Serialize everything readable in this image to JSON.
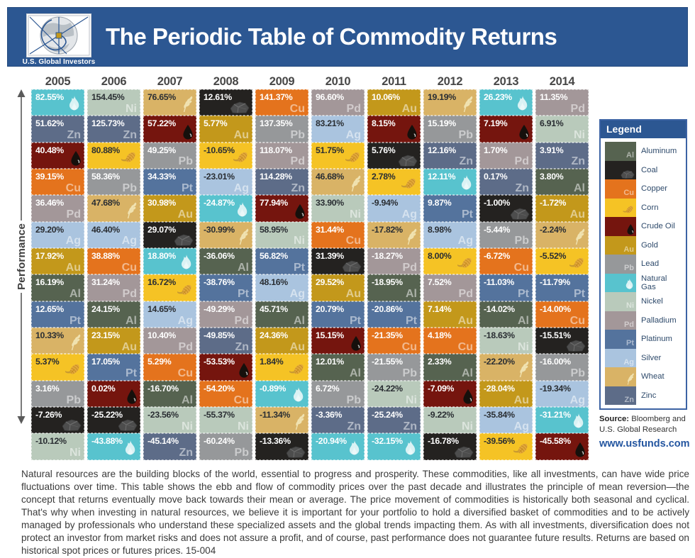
{
  "header": {
    "title": "The Periodic Table of Commodity Returns",
    "logo_caption": "U.S. Global Investors"
  },
  "performance_label": "Performance",
  "chart_data": {
    "type": "table",
    "title": "The Periodic Table of Commodity Returns",
    "years": [
      "2005",
      "2006",
      "2007",
      "2008",
      "2009",
      "2010",
      "2011",
      "2012",
      "2013",
      "2014"
    ],
    "commodities": {
      "aluminum": {
        "label": "Aluminum",
        "symbol": "Al",
        "color": "#566350",
        "text": "#FFFFFF"
      },
      "coal": {
        "label": "Coal",
        "icon": "coal",
        "color": "#242220",
        "text": "#FFFFFF"
      },
      "copper": {
        "label": "Copper",
        "symbol": "Cu",
        "color": "#E4731D",
        "text": "#FFFFFF"
      },
      "corn": {
        "label": "Corn",
        "icon": "corn",
        "color": "#F5C325",
        "text": "#2A2E33"
      },
      "crude_oil": {
        "label": "Crude Oil",
        "icon": "drop",
        "color": "#75150E",
        "text": "#FFFFFF"
      },
      "gold": {
        "label": "Gold",
        "symbol": "Au",
        "color": "#C3981B",
        "text": "#FFFFFF"
      },
      "lead": {
        "label": "Lead",
        "symbol": "Pb",
        "color": "#96989A",
        "text": "#FFFFFF"
      },
      "natural_gas": {
        "label": "Natural Gas",
        "icon": "flame",
        "color": "#58C3CE",
        "text": "#FFFFFF"
      },
      "nickel": {
        "label": "Nickel",
        "symbol": "Ni",
        "color": "#B9CABB",
        "text": "#2A2E33"
      },
      "palladium": {
        "label": "Palladium",
        "symbol": "Pd",
        "color": "#A39799",
        "text": "#FFFFFF"
      },
      "platinum": {
        "label": "Platinum",
        "symbol": "Pt",
        "color": "#54739D",
        "text": "#FFFFFF"
      },
      "silver": {
        "label": "Silver",
        "symbol": "Ag",
        "color": "#AAC4DF",
        "text": "#2A2E33"
      },
      "wheat": {
        "label": "Wheat",
        "icon": "wheat",
        "color": "#D9B366",
        "text": "#2A2E33"
      },
      "zinc": {
        "label": "Zinc",
        "symbol": "Zn",
        "color": "#5D6C88",
        "text": "#FFFFFF"
      }
    },
    "columns": {
      "2005": [
        {
          "commodity": "natural_gas",
          "value": "82.55%"
        },
        {
          "commodity": "zinc",
          "value": "51.62%"
        },
        {
          "commodity": "crude_oil",
          "value": "40.48%"
        },
        {
          "commodity": "copper",
          "value": "39.15%"
        },
        {
          "commodity": "palladium",
          "value": "36.46%"
        },
        {
          "commodity": "silver",
          "value": "29.20%"
        },
        {
          "commodity": "gold",
          "value": "17.92%"
        },
        {
          "commodity": "aluminum",
          "value": "16.19%"
        },
        {
          "commodity": "platinum",
          "value": "12.65%"
        },
        {
          "commodity": "wheat",
          "value": "10.33%"
        },
        {
          "commodity": "corn",
          "value": "5.37%"
        },
        {
          "commodity": "lead",
          "value": "3.16%"
        },
        {
          "commodity": "coal",
          "value": "-7.26%"
        },
        {
          "commodity": "nickel",
          "value": "-10.12%"
        }
      ],
      "2006": [
        {
          "commodity": "nickel",
          "value": "154.45%"
        },
        {
          "commodity": "zinc",
          "value": "125.73%"
        },
        {
          "commodity": "corn",
          "value": "80.88%"
        },
        {
          "commodity": "lead",
          "value": "58.36%"
        },
        {
          "commodity": "wheat",
          "value": "47.68%"
        },
        {
          "commodity": "silver",
          "value": "46.40%"
        },
        {
          "commodity": "copper",
          "value": "38.88%"
        },
        {
          "commodity": "palladium",
          "value": "31.24%"
        },
        {
          "commodity": "aluminum",
          "value": "24.15%"
        },
        {
          "commodity": "gold",
          "value": "23.15%"
        },
        {
          "commodity": "platinum",
          "value": "17.05%"
        },
        {
          "commodity": "crude_oil",
          "value": "0.02%"
        },
        {
          "commodity": "coal",
          "value": "-25.22%"
        },
        {
          "commodity": "natural_gas",
          "value": "-43.88%"
        }
      ],
      "2007": [
        {
          "commodity": "wheat",
          "value": "76.65%"
        },
        {
          "commodity": "crude_oil",
          "value": "57.22%"
        },
        {
          "commodity": "lead",
          "value": "49.25%"
        },
        {
          "commodity": "platinum",
          "value": "34.33%"
        },
        {
          "commodity": "gold",
          "value": "30.98%"
        },
        {
          "commodity": "coal",
          "value": "29.07%"
        },
        {
          "commodity": "natural_gas",
          "value": "18.80%"
        },
        {
          "commodity": "corn",
          "value": "16.72%"
        },
        {
          "commodity": "silver",
          "value": "14.65%"
        },
        {
          "commodity": "palladium",
          "value": "10.40%"
        },
        {
          "commodity": "copper",
          "value": "5.29%"
        },
        {
          "commodity": "aluminum",
          "value": "-16.70%"
        },
        {
          "commodity": "nickel",
          "value": "-23.56%"
        },
        {
          "commodity": "zinc",
          "value": "-45.14%"
        }
      ],
      "2008": [
        {
          "commodity": "coal",
          "value": "12.61%"
        },
        {
          "commodity": "gold",
          "value": "5.77%"
        },
        {
          "commodity": "corn",
          "value": "-10.65%"
        },
        {
          "commodity": "silver",
          "value": "-23.01%"
        },
        {
          "commodity": "natural_gas",
          "value": "-24.87%"
        },
        {
          "commodity": "wheat",
          "value": "-30.99%"
        },
        {
          "commodity": "aluminum",
          "value": "-36.06%"
        },
        {
          "commodity": "platinum",
          "value": "-38.76%"
        },
        {
          "commodity": "palladium",
          "value": "-49.29%"
        },
        {
          "commodity": "zinc",
          "value": "-49.85%"
        },
        {
          "commodity": "crude_oil",
          "value": "-53.53%"
        },
        {
          "commodity": "copper",
          "value": "-54.20%"
        },
        {
          "commodity": "nickel",
          "value": "-55.37%"
        },
        {
          "commodity": "lead",
          "value": "-60.24%"
        }
      ],
      "2009": [
        {
          "commodity": "copper",
          "value": "141.37%"
        },
        {
          "commodity": "lead",
          "value": "137.35%"
        },
        {
          "commodity": "palladium",
          "value": "118.07%"
        },
        {
          "commodity": "zinc",
          "value": "114.28%"
        },
        {
          "commodity": "crude_oil",
          "value": "77.94%"
        },
        {
          "commodity": "nickel",
          "value": "58.95%"
        },
        {
          "commodity": "platinum",
          "value": "56.82%"
        },
        {
          "commodity": "silver",
          "value": "48.16%"
        },
        {
          "commodity": "aluminum",
          "value": "45.71%"
        },
        {
          "commodity": "gold",
          "value": "24.36%"
        },
        {
          "commodity": "corn",
          "value": "1.84%"
        },
        {
          "commodity": "natural_gas",
          "value": "-0.89%"
        },
        {
          "commodity": "wheat",
          "value": "-11.34%"
        },
        {
          "commodity": "coal",
          "value": "-13.36%"
        }
      ],
      "2010": [
        {
          "commodity": "palladium",
          "value": "96.60%"
        },
        {
          "commodity": "silver",
          "value": "83.21%"
        },
        {
          "commodity": "corn",
          "value": "51.75%"
        },
        {
          "commodity": "wheat",
          "value": "46.68%"
        },
        {
          "commodity": "nickel",
          "value": "33.90%"
        },
        {
          "commodity": "copper",
          "value": "31.44%"
        },
        {
          "commodity": "coal",
          "value": "31.39%"
        },
        {
          "commodity": "gold",
          "value": "29.52%"
        },
        {
          "commodity": "platinum",
          "value": "20.79%"
        },
        {
          "commodity": "crude_oil",
          "value": "15.15%"
        },
        {
          "commodity": "aluminum",
          "value": "12.01%"
        },
        {
          "commodity": "lead",
          "value": "6.72%"
        },
        {
          "commodity": "zinc",
          "value": "-3.36%"
        },
        {
          "commodity": "natural_gas",
          "value": "-20.94%"
        }
      ],
      "2011": [
        {
          "commodity": "gold",
          "value": "10.06%"
        },
        {
          "commodity": "crude_oil",
          "value": "8.15%"
        },
        {
          "commodity": "coal",
          "value": "5.76%"
        },
        {
          "commodity": "corn",
          "value": "2.78%"
        },
        {
          "commodity": "silver",
          "value": "-9.94%"
        },
        {
          "commodity": "wheat",
          "value": "-17.82%"
        },
        {
          "commodity": "palladium",
          "value": "-18.27%"
        },
        {
          "commodity": "aluminum",
          "value": "-18.95%"
        },
        {
          "commodity": "platinum",
          "value": "-20.86%"
        },
        {
          "commodity": "copper",
          "value": "-21.35%"
        },
        {
          "commodity": "lead",
          "value": "-21.55%"
        },
        {
          "commodity": "nickel",
          "value": "-24.22%"
        },
        {
          "commodity": "zinc",
          "value": "-25.24%"
        },
        {
          "commodity": "natural_gas",
          "value": "-32.15%"
        }
      ],
      "2012": [
        {
          "commodity": "wheat",
          "value": "19.19%"
        },
        {
          "commodity": "lead",
          "value": "15.19%"
        },
        {
          "commodity": "zinc",
          "value": "12.16%"
        },
        {
          "commodity": "natural_gas",
          "value": "12.11%"
        },
        {
          "commodity": "platinum",
          "value": "9.87%"
        },
        {
          "commodity": "silver",
          "value": "8.98%"
        },
        {
          "commodity": "corn",
          "value": "8.00%"
        },
        {
          "commodity": "palladium",
          "value": "7.52%"
        },
        {
          "commodity": "gold",
          "value": "7.14%"
        },
        {
          "commodity": "copper",
          "value": "4.18%"
        },
        {
          "commodity": "aluminum",
          "value": "2.33%"
        },
        {
          "commodity": "crude_oil",
          "value": "-7.09%"
        },
        {
          "commodity": "nickel",
          "value": "-9.22%"
        },
        {
          "commodity": "coal",
          "value": "-16.78%"
        }
      ],
      "2013": [
        {
          "commodity": "natural_gas",
          "value": "26.23%"
        },
        {
          "commodity": "crude_oil",
          "value": "7.19%"
        },
        {
          "commodity": "palladium",
          "value": "1.70%"
        },
        {
          "commodity": "zinc",
          "value": "0.17%"
        },
        {
          "commodity": "coal",
          "value": "-1.00%"
        },
        {
          "commodity": "lead",
          "value": "-5.44%"
        },
        {
          "commodity": "copper",
          "value": "-6.72%"
        },
        {
          "commodity": "platinum",
          "value": "-11.03%"
        },
        {
          "commodity": "aluminum",
          "value": "-14.02%"
        },
        {
          "commodity": "nickel",
          "value": "-18.63%"
        },
        {
          "commodity": "wheat",
          "value": "-22.20%"
        },
        {
          "commodity": "gold",
          "value": "-28.04%"
        },
        {
          "commodity": "silver",
          "value": "-35.84%"
        },
        {
          "commodity": "corn",
          "value": "-39.56%"
        }
      ],
      "2014": [
        {
          "commodity": "palladium",
          "value": "11.35%"
        },
        {
          "commodity": "nickel",
          "value": "6.91%"
        },
        {
          "commodity": "zinc",
          "value": "3.91%"
        },
        {
          "commodity": "aluminum",
          "value": "3.80%"
        },
        {
          "commodity": "gold",
          "value": "-1.72%"
        },
        {
          "commodity": "wheat",
          "value": "-2.24%"
        },
        {
          "commodity": "corn",
          "value": "-5.52%"
        },
        {
          "commodity": "platinum",
          "value": "-11.79%"
        },
        {
          "commodity": "copper",
          "value": "-14.00%"
        },
        {
          "commodity": "coal",
          "value": "-15.51%"
        },
        {
          "commodity": "lead",
          "value": "-16.00%"
        },
        {
          "commodity": "silver",
          "value": "-19.34%"
        },
        {
          "commodity": "natural_gas",
          "value": "-31.21%"
        },
        {
          "commodity": "crude_oil",
          "value": "-45.58%"
        }
      ]
    },
    "legend": {
      "title": "Legend",
      "order": [
        "aluminum",
        "coal",
        "copper",
        "corn",
        "crude_oil",
        "gold",
        "lead",
        "natural_gas",
        "nickel",
        "palladium",
        "platinum",
        "silver",
        "wheat",
        "zinc"
      ]
    }
  },
  "source": {
    "label": "Source:",
    "text": "Bloomberg and U.S. Global Research",
    "url": "www.usfunds.com"
  },
  "footer": {
    "text": "Natural resources are the building blocks of the world, essential to progress and prosperity. These commodities, like all investments, can have wide price fluctuations over time. This table shows the ebb and flow of commodity prices over the past decade and illustrates the principle of mean reversion—the concept that returns eventually move back towards their mean or average. The price movement of commodities is historically both seasonal and cyclical. That's why when investing in natural resources, we believe it is important for your portfolio to hold a diversified basket of commodities and to be actively managed by professionals who understand these specialized assets and the global trends impacting them. As with all investments, diversification does not protect an investor from market risks and does not assure a profit, and of course, past performance does not guarantee future results. Returns are based on historical spot prices or futures prices. 15-004"
  }
}
